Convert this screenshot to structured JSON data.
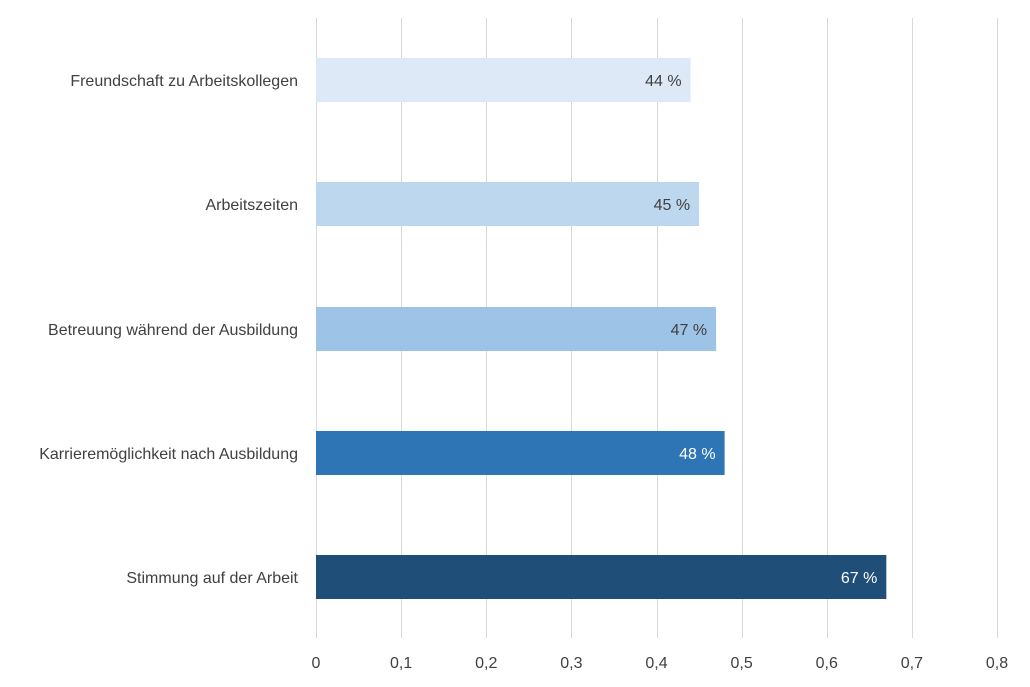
{
  "chart_data": {
    "type": "bar",
    "orientation": "horizontal",
    "categories": [
      "Freundschaft zu Arbeitskollegen",
      "Arbeitszeiten",
      "Betreuung während der Ausbildung",
      "Karrieremöglichkeit nach Ausbildung",
      "Stimmung auf der Arbeit"
    ],
    "values": [
      0.44,
      0.45,
      0.47,
      0.48,
      0.67
    ],
    "data_labels": [
      "44 %",
      "45 %",
      "47 %",
      "48 %",
      "67 %"
    ],
    "bar_colors": [
      "#dde9f6",
      "#bdd7ee",
      "#9dc3e6",
      "#2e75b6",
      "#1f4e79"
    ],
    "data_label_colors": [
      "#404040",
      "#404040",
      "#404040",
      "#ffffff",
      "#ffffff"
    ],
    "xlim": [
      0,
      0.8
    ],
    "x_ticks": [
      0,
      0.1,
      0.2,
      0.3,
      0.4,
      0.5,
      0.6,
      0.7,
      0.8
    ],
    "x_tick_labels": [
      "0",
      "0,1",
      "0,2",
      "0,3",
      "0,4",
      "0,5",
      "0,6",
      "0,7",
      "0,8"
    ],
    "grid": "vertical",
    "legend": "none",
    "title": "",
    "xlabel": "",
    "ylabel": ""
  }
}
